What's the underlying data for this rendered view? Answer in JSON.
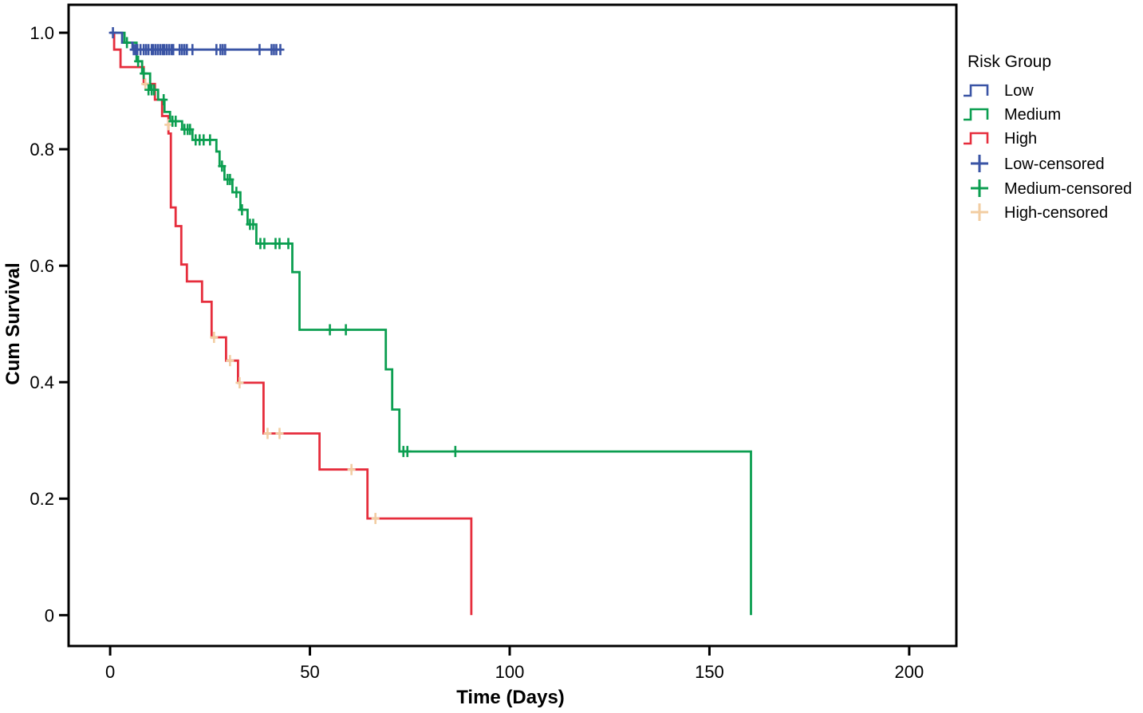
{
  "figure": {
    "background": "#ffffff",
    "frame_color": "#000000",
    "text_color": "#000000"
  },
  "chart_data": {
    "type": "line",
    "subtype": "kaplan-meier-step-survival",
    "title": "",
    "xlabel": "Time (Days)",
    "ylabel": "Cum Survival",
    "xlim": [
      -10.4,
      211.8
    ],
    "ylim": [
      -0.053,
      1.048
    ],
    "xtick_values": [
      0,
      50,
      100,
      150,
      200
    ],
    "xtick_labels": [
      "0",
      "50",
      "100",
      "150",
      "200"
    ],
    "ytick_values": [
      0,
      0.2,
      0.4,
      0.6,
      0.8,
      1.0
    ],
    "ytick_labels": [
      "0",
      "0.2",
      "0.4",
      "0.6",
      "0.8",
      "1.0"
    ],
    "grid": false,
    "legend_position": "right",
    "legend_title": "Risk Group",
    "series": [
      {
        "name": "High",
        "color": "#e62d3c",
        "censor_color": "#f2cda2",
        "steps": [
          [
            0,
            1.0
          ],
          [
            1.0,
            1.0
          ],
          [
            1.0,
            0.971
          ],
          [
            2.6,
            0.971
          ],
          [
            2.6,
            0.941
          ],
          [
            8.4,
            0.941
          ],
          [
            8.4,
            0.912
          ],
          [
            11.2,
            0.912
          ],
          [
            11.2,
            0.885
          ],
          [
            13.0,
            0.885
          ],
          [
            13.0,
            0.857
          ],
          [
            14.6,
            0.857
          ],
          [
            14.6,
            0.827
          ],
          [
            15.2,
            0.827
          ],
          [
            15.2,
            0.7
          ],
          [
            16.4,
            0.7
          ],
          [
            16.4,
            0.668
          ],
          [
            17.8,
            0.668
          ],
          [
            17.8,
            0.602
          ],
          [
            19.2,
            0.602
          ],
          [
            19.2,
            0.573
          ],
          [
            23.0,
            0.573
          ],
          [
            23.0,
            0.538
          ],
          [
            25.4,
            0.538
          ],
          [
            25.4,
            0.477
          ],
          [
            29.0,
            0.477
          ],
          [
            29.0,
            0.437
          ],
          [
            32.0,
            0.437
          ],
          [
            32.0,
            0.399
          ],
          [
            38.4,
            0.399
          ],
          [
            38.4,
            0.312
          ],
          [
            52.4,
            0.312
          ],
          [
            52.4,
            0.25
          ],
          [
            64.4,
            0.25
          ],
          [
            64.4,
            0.166
          ],
          [
            90.4,
            0.166
          ],
          [
            90.4,
            0.0
          ]
        ],
        "censored": [
          [
            8.8,
            0.912
          ],
          [
            14.6,
            0.842
          ],
          [
            26.0,
            0.477
          ],
          [
            30.0,
            0.437
          ],
          [
            32.4,
            0.399
          ],
          [
            39.4,
            0.312
          ],
          [
            42.4,
            0.312
          ],
          [
            60.4,
            0.25
          ],
          [
            66.4,
            0.166
          ]
        ]
      },
      {
        "name": "Medium",
        "color": "#0b9e50",
        "censor_color": "#0b9e50",
        "steps": [
          [
            0,
            1.0
          ],
          [
            3.6,
            1.0
          ],
          [
            3.6,
            0.983
          ],
          [
            6.6,
            0.983
          ],
          [
            6.6,
            0.951
          ],
          [
            8.0,
            0.951
          ],
          [
            8.0,
            0.93
          ],
          [
            10.0,
            0.93
          ],
          [
            10.0,
            0.902
          ],
          [
            12.0,
            0.902
          ],
          [
            12.0,
            0.885
          ],
          [
            13.6,
            0.885
          ],
          [
            13.6,
            0.864
          ],
          [
            15.0,
            0.864
          ],
          [
            15.0,
            0.848
          ],
          [
            18.0,
            0.848
          ],
          [
            18.0,
            0.834
          ],
          [
            20.6,
            0.834
          ],
          [
            20.6,
            0.816
          ],
          [
            26.6,
            0.816
          ],
          [
            26.6,
            0.796
          ],
          [
            27.4,
            0.796
          ],
          [
            27.4,
            0.771
          ],
          [
            28.6,
            0.771
          ],
          [
            28.6,
            0.748
          ],
          [
            30.6,
            0.748
          ],
          [
            30.6,
            0.726
          ],
          [
            32.6,
            0.726
          ],
          [
            32.6,
            0.696
          ],
          [
            34.4,
            0.696
          ],
          [
            34.4,
            0.671
          ],
          [
            36.6,
            0.671
          ],
          [
            36.6,
            0.638
          ],
          [
            45.6,
            0.638
          ],
          [
            45.6,
            0.589
          ],
          [
            47.4,
            0.589
          ],
          [
            47.4,
            0.49
          ],
          [
            69.0,
            0.49
          ],
          [
            69.0,
            0.422
          ],
          [
            70.6,
            0.422
          ],
          [
            70.6,
            0.353
          ],
          [
            72.4,
            0.353
          ],
          [
            72.4,
            0.281
          ],
          [
            160.4,
            0.281
          ],
          [
            160.4,
            0.0
          ]
        ],
        "censored": [
          [
            4.2,
            0.983
          ],
          [
            7.0,
            0.951
          ],
          [
            8.4,
            0.93
          ],
          [
            9.6,
            0.902
          ],
          [
            10.4,
            0.902
          ],
          [
            11.0,
            0.902
          ],
          [
            13.4,
            0.885
          ],
          [
            15.6,
            0.848
          ],
          [
            16.4,
            0.848
          ],
          [
            18.6,
            0.834
          ],
          [
            19.4,
            0.834
          ],
          [
            20.0,
            0.834
          ],
          [
            21.4,
            0.816
          ],
          [
            22.4,
            0.816
          ],
          [
            23.4,
            0.816
          ],
          [
            25.0,
            0.816
          ],
          [
            28.0,
            0.771
          ],
          [
            29.4,
            0.748
          ],
          [
            30.0,
            0.748
          ],
          [
            31.6,
            0.726
          ],
          [
            33.0,
            0.696
          ],
          [
            35.0,
            0.671
          ],
          [
            35.8,
            0.671
          ],
          [
            37.6,
            0.638
          ],
          [
            38.6,
            0.638
          ],
          [
            41.4,
            0.638
          ],
          [
            42.4,
            0.638
          ],
          [
            44.6,
            0.638
          ],
          [
            55.0,
            0.49
          ],
          [
            59.0,
            0.49
          ],
          [
            73.4,
            0.281
          ],
          [
            74.4,
            0.281
          ],
          [
            86.4,
            0.281
          ]
        ]
      },
      {
        "name": "Low",
        "color": "#3a54a5",
        "censor_color": "#3a54a5",
        "steps": [
          [
            0,
            1.0
          ],
          [
            3.0,
            1.0
          ],
          [
            3.0,
            0.983
          ],
          [
            5.6,
            0.983
          ],
          [
            5.6,
            0.971
          ],
          [
            43.0,
            0.971
          ]
        ],
        "censored": [
          [
            0.7,
            1.0
          ],
          [
            5.9,
            0.971
          ],
          [
            6.4,
            0.971
          ],
          [
            6.8,
            0.971
          ],
          [
            7.6,
            0.971
          ],
          [
            8.4,
            0.971
          ],
          [
            9.0,
            0.971
          ],
          [
            9.6,
            0.971
          ],
          [
            10.4,
            0.971
          ],
          [
            10.8,
            0.971
          ],
          [
            11.4,
            0.971
          ],
          [
            12.0,
            0.971
          ],
          [
            12.6,
            0.971
          ],
          [
            13.2,
            0.971
          ],
          [
            13.6,
            0.971
          ],
          [
            14.2,
            0.971
          ],
          [
            14.8,
            0.971
          ],
          [
            15.4,
            0.971
          ],
          [
            15.8,
            0.971
          ],
          [
            17.4,
            0.971
          ],
          [
            18.0,
            0.971
          ],
          [
            18.6,
            0.971
          ],
          [
            19.2,
            0.971
          ],
          [
            20.6,
            0.971
          ],
          [
            26.6,
            0.971
          ],
          [
            27.6,
            0.971
          ],
          [
            28.2,
            0.971
          ],
          [
            28.8,
            0.971
          ],
          [
            37.4,
            0.971
          ],
          [
            40.4,
            0.971
          ],
          [
            41.0,
            0.971
          ],
          [
            41.6,
            0.971
          ],
          [
            42.6,
            0.971
          ]
        ]
      }
    ],
    "legend_items": [
      {
        "label": "Low",
        "glyph": "step-line",
        "color": "#3a54a5"
      },
      {
        "label": "Medium",
        "glyph": "step-line",
        "color": "#0b9e50"
      },
      {
        "label": "High",
        "glyph": "step-line",
        "color": "#e62d3c"
      },
      {
        "label": "Low-censored",
        "glyph": "plus",
        "color": "#3a54a5"
      },
      {
        "label": "Medium-censored",
        "glyph": "plus",
        "color": "#0b9e50"
      },
      {
        "label": "High-censored",
        "glyph": "plus",
        "color": "#f2cda2"
      }
    ]
  }
}
